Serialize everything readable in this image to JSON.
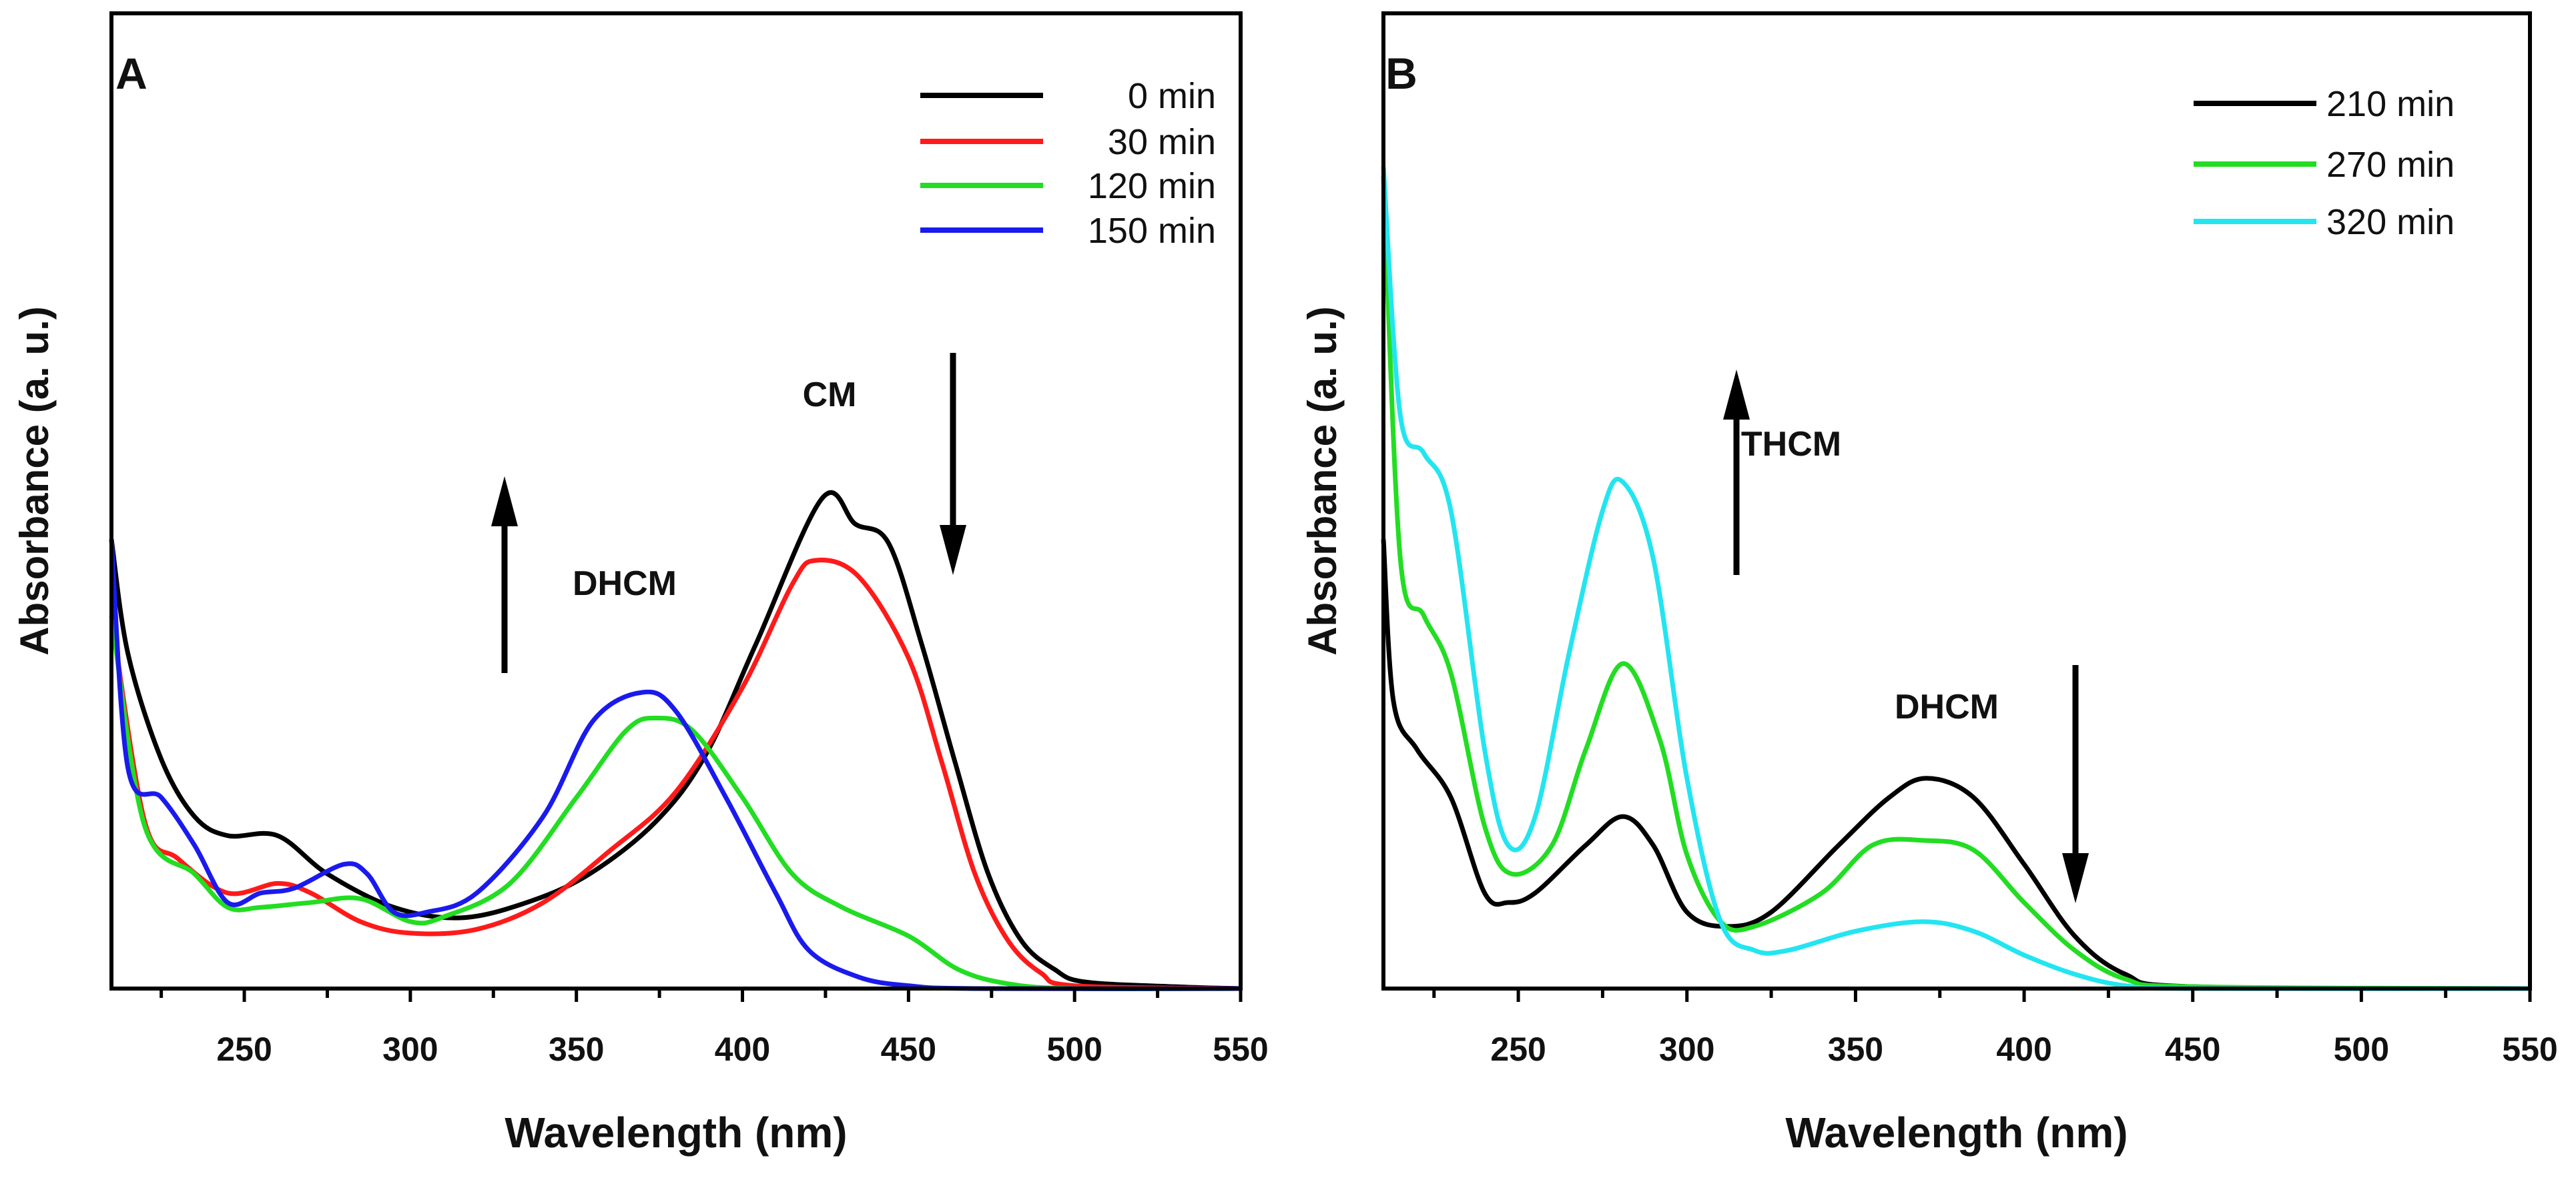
{
  "chart_data": [
    {
      "type": "line",
      "panel_label": "A",
      "xlabel": "Wavelength (nm)",
      "ylabel": "Absorbance (a. u.)",
      "xlim": [
        210,
        550
      ],
      "ylim": [
        0,
        1
      ],
      "xticks": [
        "250",
        "300",
        "350",
        "400",
        "450",
        "500",
        "550"
      ],
      "grid": false,
      "legend_position": "top-right",
      "annotations": [
        {
          "text": "CM",
          "arrow": "down"
        },
        {
          "text": "DHCM",
          "arrow": "up"
        }
      ],
      "series": [
        {
          "name": "0 min",
          "color": "#000000",
          "x": [
            210,
            215,
            225,
            235,
            245,
            260,
            275,
            295,
            315,
            335,
            354,
            374,
            389,
            404,
            424,
            434,
            444,
            454,
            464,
            474,
            484,
            494,
            503,
            530,
            550
          ],
          "y": [
            0.47,
            0.35,
            0.24,
            0.18,
            0.16,
            0.16,
            0.12,
            0.085,
            0.074,
            0.09,
            0.12,
            0.175,
            0.245,
            0.36,
            0.513,
            0.486,
            0.466,
            0.36,
            0.237,
            0.12,
            0.05,
            0.02,
            0.007,
            0.002,
            0
          ]
        },
        {
          "name": "30 min",
          "color": "#ff1a1a",
          "x": [
            210,
            220,
            230,
            245,
            260,
            270,
            285,
            300,
            320,
            340,
            360,
            380,
            400,
            415,
            422,
            435,
            450,
            460,
            470,
            480,
            490,
            500,
            550
          ],
          "y": [
            0.39,
            0.175,
            0.136,
            0.1,
            0.11,
            0.1,
            0.07,
            0.058,
            0.062,
            0.09,
            0.144,
            0.206,
            0.315,
            0.423,
            0.448,
            0.431,
            0.346,
            0.237,
            0.12,
            0.05,
            0.016,
            0.003,
            0
          ]
        },
        {
          "name": "120 min",
          "color": "#22dd22",
          "x": [
            210,
            220,
            235,
            245,
            255,
            270,
            285,
            300,
            310,
            330,
            350,
            365,
            374,
            385,
            400,
            415,
            430,
            450,
            465,
            480,
            500,
            550
          ],
          "y": [
            0.39,
            0.17,
            0.12,
            0.085,
            0.085,
            0.09,
            0.094,
            0.07,
            0.075,
            0.11,
            0.2,
            0.27,
            0.283,
            0.27,
            0.2,
            0.12,
            0.085,
            0.055,
            0.02,
            0.005,
            0,
            0
          ]
        },
        {
          "name": "150 min",
          "color": "#1a1aee",
          "x": [
            210,
            215,
            225,
            235,
            245,
            255,
            265,
            280,
            287,
            295,
            305,
            320,
            340,
            355,
            370,
            380,
            395,
            410,
            420,
            435,
            450,
            470,
            550
          ],
          "y": [
            0.47,
            0.23,
            0.2,
            0.15,
            0.09,
            0.1,
            0.105,
            0.13,
            0.12,
            0.08,
            0.08,
            0.1,
            0.18,
            0.28,
            0.31,
            0.29,
            0.2,
            0.1,
            0.04,
            0.012,
            0.003,
            0,
            0
          ]
        }
      ]
    },
    {
      "type": "line",
      "panel_label": "B",
      "xlabel": "Wavelength (nm)",
      "ylabel": "Absorbance (a. u.)",
      "xlim": [
        210,
        550
      ],
      "ylim": [
        0,
        1
      ],
      "xticks": [
        "250",
        "300",
        "350",
        "400",
        "450",
        "500",
        "550"
      ],
      "grid": false,
      "legend_position": "top-right",
      "annotations": [
        {
          "text": "THCM",
          "arrow": "up"
        },
        {
          "text": "DHCM",
          "arrow": "down"
        }
      ],
      "series": [
        {
          "name": "210 min",
          "color": "#000000",
          "x": [
            210,
            213,
            220,
            230,
            240,
            247,
            255,
            270,
            281,
            290,
            300,
            312,
            325,
            345,
            360,
            371,
            385,
            400,
            415,
            430,
            450,
            550
          ],
          "y": [
            0.47,
            0.3,
            0.25,
            0.2,
            0.1,
            0.09,
            0.1,
            0.15,
            0.18,
            0.15,
            0.08,
            0.065,
            0.08,
            0.15,
            0.2,
            0.22,
            0.2,
            0.13,
            0.055,
            0.015,
            0.002,
            0
          ]
        },
        {
          "name": "270 min",
          "color": "#22dd22",
          "x": [
            210,
            215,
            222,
            230,
            240,
            248,
            260,
            270,
            281,
            292,
            300,
            310,
            320,
            340,
            355,
            370,
            385,
            400,
            415,
            430,
            450,
            550
          ],
          "y": [
            0.85,
            0.45,
            0.39,
            0.33,
            0.17,
            0.12,
            0.15,
            0.25,
            0.34,
            0.26,
            0.14,
            0.07,
            0.065,
            0.1,
            0.15,
            0.155,
            0.145,
            0.09,
            0.04,
            0.01,
            0.002,
            0
          ]
        },
        {
          "name": "320 min",
          "color": "#22e5f0",
          "x": [
            210,
            215,
            222,
            230,
            240,
            247,
            255,
            265,
            275,
            281,
            290,
            300,
            310,
            320,
            330,
            350,
            370,
            385,
            400,
            415,
            430,
            450,
            550
          ],
          "y": [
            0.86,
            0.6,
            0.56,
            0.5,
            0.25,
            0.15,
            0.18,
            0.35,
            0.5,
            0.53,
            0.45,
            0.22,
            0.07,
            0.04,
            0.04,
            0.06,
            0.07,
            0.06,
            0.035,
            0.015,
            0.003,
            0,
            0
          ]
        }
      ]
    }
  ]
}
